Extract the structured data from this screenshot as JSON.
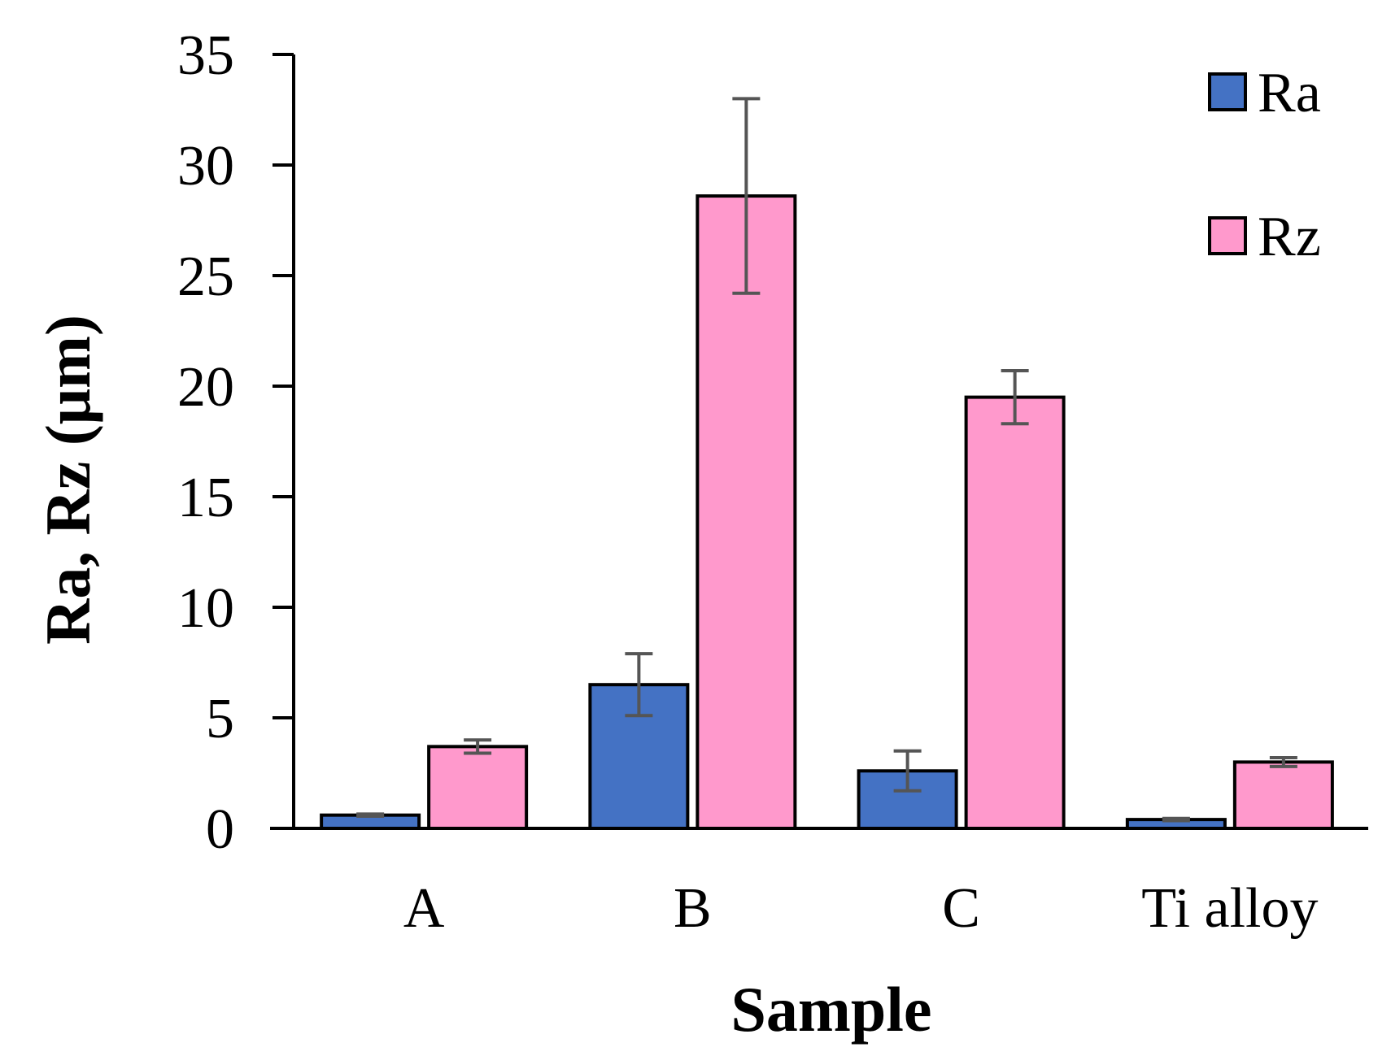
{
  "chart_data": {
    "type": "bar",
    "title": "",
    "xlabel": "Sample",
    "ylabel": "Ra, Rz (μm)",
    "categories": [
      "A",
      "B",
      "C",
      "Ti alloy"
    ],
    "series": [
      {
        "name": "Ra",
        "color": "#4472C4",
        "values": [
          0.6,
          6.5,
          2.6,
          0.4
        ],
        "errors": [
          0.05,
          1.4,
          0.9,
          0.05
        ]
      },
      {
        "name": "Rz",
        "color": "#FF99CC",
        "values": [
          3.7,
          28.6,
          19.5,
          3.0
        ],
        "errors": [
          0.3,
          4.4,
          1.2,
          0.2
        ]
      }
    ],
    "ylim": [
      0,
      35
    ],
    "yticks": [
      0,
      5,
      10,
      15,
      20,
      25,
      30,
      35
    ],
    "grid": false,
    "legend_position": "top-right"
  }
}
